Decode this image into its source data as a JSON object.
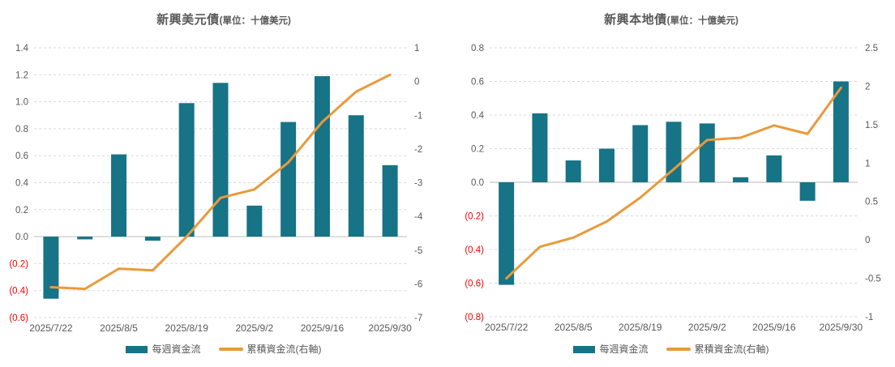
{
  "colors": {
    "bar": "#177386",
    "line": "#E99A3C",
    "text": "#595959",
    "negative_label": "#FF0000",
    "gridline": "#D9D9D9",
    "zero_line": "#CFCFCF",
    "background": "#FFFFFF"
  },
  "chart_data": [
    {
      "type": "bar+line",
      "title": "新興美元債",
      "title_unit": "(單位：十億美元)",
      "n_points": 11,
      "x_tick_labels": [
        "2025/7/22",
        "2025/8/5",
        "2025/8/19",
        "2025/9/2",
        "2025/9/16",
        "2025/9/30"
      ],
      "x_tick_positions": [
        0,
        2,
        4,
        6,
        8,
        10
      ],
      "left_axis": {
        "ylim": [
          -0.6,
          1.4
        ],
        "step": 0.2,
        "tick_labels": [
          "1.4",
          "1.2",
          "1.0",
          "0.8",
          "0.6",
          "0.4",
          "0.2",
          "0.0",
          "(0.2)",
          "(0.4)",
          "(0.6)"
        ]
      },
      "right_axis": {
        "ylim": [
          -7,
          1
        ],
        "step": 1,
        "tick_labels": [
          "1",
          "0",
          "-1",
          "-2",
          "-3",
          "-4",
          "-5",
          "-6",
          "-7"
        ]
      },
      "grid": "horizontal dashed",
      "legend_position": "bottom",
      "series": [
        {
          "name": "每週資金流",
          "type": "bar",
          "axis": "left",
          "values": [
            -0.46,
            -0.02,
            0.61,
            -0.03,
            0.99,
            1.14,
            0.23,
            0.85,
            1.19,
            0.9,
            0.53
          ]
        },
        {
          "name": "累積資金流(右軸)",
          "type": "line",
          "axis": "right",
          "values": [
            -6.1,
            -6.15,
            -5.55,
            -5.6,
            -4.6,
            -3.45,
            -3.2,
            -2.4,
            -1.2,
            -0.3,
            0.2
          ]
        }
      ]
    },
    {
      "type": "bar+line",
      "title": "新興本地債",
      "title_unit": "(單位：十億美元)",
      "n_points": 11,
      "x_tick_labels": [
        "2025/7/22",
        "2025/8/5",
        "2025/8/19",
        "2025/9/2",
        "2025/9/16",
        "2025/9/30"
      ],
      "x_tick_positions": [
        0,
        2,
        4,
        6,
        8,
        10
      ],
      "left_axis": {
        "ylim": [
          -0.8,
          0.8
        ],
        "step": 0.2,
        "tick_labels": [
          "0.8",
          "0.6",
          "0.4",
          "0.2",
          "0.0",
          "(0.2)",
          "(0.4)",
          "(0.6)",
          "(0.8)"
        ]
      },
      "right_axis": {
        "ylim": [
          -1,
          2.5
        ],
        "step": 0.5,
        "tick_labels": [
          "2.5",
          "2",
          "1.5",
          "1",
          "0.5",
          "0",
          "-0.5",
          "-1"
        ]
      },
      "grid": "horizontal dashed",
      "legend_position": "bottom",
      "series": [
        {
          "name": "每週資金流",
          "type": "bar",
          "axis": "left",
          "values": [
            -0.61,
            0.41,
            0.13,
            0.2,
            0.34,
            0.36,
            0.35,
            0.03,
            0.16,
            -0.11,
            0.6
          ]
        },
        {
          "name": "累積資金流(右軸)",
          "type": "line",
          "axis": "right",
          "values": [
            -0.5,
            -0.09,
            0.03,
            0.24,
            0.55,
            0.92,
            1.3,
            1.33,
            1.49,
            1.38,
            1.98
          ]
        }
      ]
    }
  ]
}
